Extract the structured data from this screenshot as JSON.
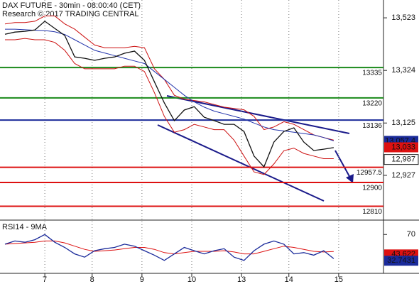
{
  "chart_data": [
    {
      "type": "line",
      "title": "DAX FUTURE - 30min - 08:00:40 (CET)",
      "subtitle": "Research © 2017 TRADING CENTRAL",
      "x": [
        0,
        2,
        4,
        6,
        8,
        10,
        12,
        14,
        16,
        18,
        20,
        22,
        24,
        26,
        28,
        30,
        32,
        34,
        36,
        38,
        40,
        42,
        44,
        46,
        48,
        50,
        52,
        54,
        56,
        58,
        60,
        62,
        64,
        66
      ],
      "xlim": [
        -1,
        76
      ],
      "ylim": [
        12763,
        13577
      ],
      "yticks": [
        {
          "value": 13523,
          "label": "13,523"
        },
        {
          "value": 13324,
          "label": "13,324"
        },
        {
          "value": 13125,
          "label": "13,125"
        },
        {
          "value": 12927,
          "label": "12,927"
        }
      ],
      "series": [
        {
          "color": "#cc1111",
          "values": [
            13500,
            13505,
            13505,
            13510,
            13530,
            13530,
            13500,
            13480,
            13450,
            13420,
            13410,
            13410,
            13410,
            13415,
            13410,
            13330,
            13290,
            13230,
            13215,
            13210,
            13205,
            13195,
            13185,
            13180,
            13175,
            13150,
            13100,
            13110,
            13130,
            13120,
            13100,
            13080,
            13070,
            13060
          ]
        },
        {
          "color": "#cc1111",
          "values": [
            13440,
            13440,
            13445,
            13440,
            13440,
            13430,
            13400,
            13350,
            13330,
            13330,
            13330,
            13330,
            13340,
            13340,
            13320,
            13240,
            13150,
            13090,
            13100,
            13120,
            13110,
            13100,
            13100,
            13060,
            13000,
            12940,
            12930,
            12970,
            13020,
            13030,
            13010,
            13000,
            12990,
            12990
          ]
        },
        {
          "color": "#2233aa",
          "values": [
            13480,
            13480,
            13478,
            13476,
            13475,
            13470,
            13460,
            13440,
            13420,
            13400,
            13390,
            13380,
            13370,
            13360,
            13350,
            13320,
            13290,
            13260,
            13230,
            13205,
            13185,
            13170,
            13160,
            13150,
            13140,
            13125,
            13110,
            13100,
            13095,
            13090,
            13085,
            13080,
            13070,
            13057.4
          ]
        },
        {
          "color": "#111111",
          "values": [
            13461,
            13469,
            13472,
            13477,
            13510,
            13483,
            13456,
            13375,
            13370,
            13362,
            13370,
            13375,
            13389,
            13397,
            13362,
            13281,
            13201,
            13134,
            13174,
            13187,
            13147,
            13134,
            13120,
            13120,
            13093,
            13000,
            12959,
            13053,
            13093,
            13107,
            13053,
            13021,
            13026,
            13032
          ]
        }
      ],
      "levels": [
        {
          "value": 13335,
          "color": "#1a8a1a"
        },
        {
          "value": 13220,
          "color": "#1a8a1a"
        },
        {
          "value": 13136,
          "color": "#1a2a9a"
        },
        {
          "value": 12957.5,
          "color": "#dd1111"
        },
        {
          "value": 12900,
          "color": "#dd1111"
        },
        {
          "value": 12810,
          "color": "#dd1111"
        }
      ],
      "price_labels": [
        {
          "value": 13057.4,
          "label": "13,057.4",
          "color": "#1a2a9a"
        },
        {
          "value": 13033,
          "label": "13,033",
          "color": "#dd1111"
        },
        {
          "value": 12987,
          "label": "12,987",
          "color": "#ffffff"
        }
      ]
    },
    {
      "type": "line",
      "title": "RSI14 - 9MA",
      "x": [
        0,
        2,
        4,
        6,
        8,
        10,
        12,
        14,
        16,
        18,
        20,
        22,
        24,
        26,
        28,
        30,
        32,
        34,
        36,
        38,
        40,
        42,
        44,
        46,
        48,
        50,
        52,
        54,
        56,
        58,
        60,
        62,
        64,
        66
      ],
      "xlim": [
        -1,
        76
      ],
      "ylim": [
        10,
        90
      ],
      "yticks": [
        70
      ],
      "xticks": [
        {
          "value": 8,
          "label": "7"
        },
        {
          "value": 17.5,
          "label": "8"
        },
        {
          "value": 27.5,
          "label": "9"
        },
        {
          "value": 37.5,
          "label": "10"
        },
        {
          "value": 47.5,
          "label": "13"
        },
        {
          "value": 57,
          "label": "14"
        },
        {
          "value": 67,
          "label": "15"
        }
      ],
      "series": [
        {
          "color": "#dd1111",
          "values": [
            55,
            56,
            57,
            58,
            60,
            60,
            57,
            52,
            47,
            44,
            45,
            46,
            48,
            50,
            50,
            47,
            42,
            40,
            42,
            44,
            44,
            44,
            45,
            43,
            40,
            40,
            44,
            48,
            52,
            50,
            47,
            44,
            43,
            43.622
          ]
        },
        {
          "color": "#1a2a9a",
          "values": [
            55,
            60,
            58,
            62,
            70,
            58,
            50,
            40,
            35,
            45,
            48,
            50,
            55,
            52,
            45,
            38,
            30,
            40,
            50,
            45,
            40,
            45,
            48,
            35,
            30,
            45,
            55,
            60,
            55,
            40,
            42,
            38,
            45,
            32.7431
          ]
        }
      ]
    }
  ]
}
